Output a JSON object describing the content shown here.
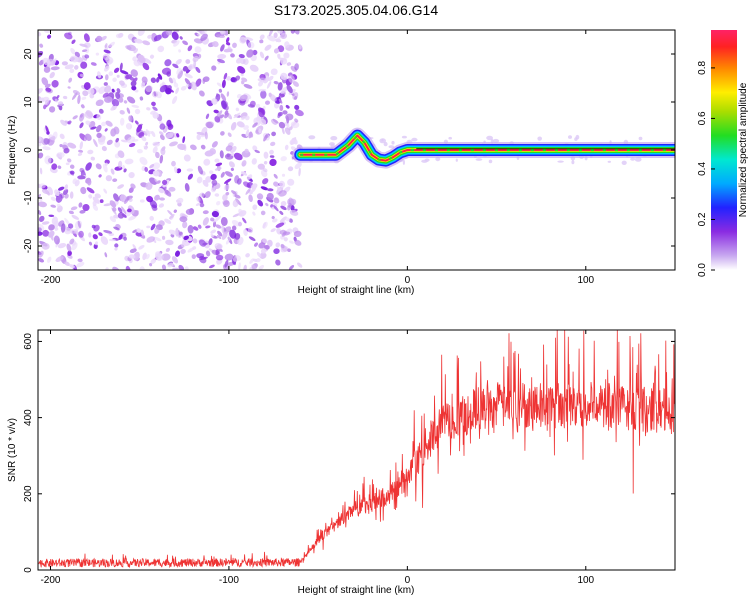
{
  "title": "S173.2025.305.04.06.G14",
  "chart_data": [
    {
      "type": "heatmap",
      "name": "spectrogram",
      "xlabel": "Height of straight line (km)",
      "ylabel": "Frequency (Hz)",
      "xlim": [
        -207,
        150
      ],
      "ylim": [
        -25,
        25
      ],
      "xticks": [
        -200,
        -100,
        0,
        100
      ],
      "yticks": [
        -20,
        -10,
        0,
        10,
        20
      ],
      "noise_region_x": [
        -207,
        -60
      ],
      "ridge_x": [
        -60,
        -50,
        -40,
        -33,
        -28,
        -24,
        -20,
        -16,
        -12,
        -8,
        -4,
        0,
        5,
        10,
        20,
        40,
        80,
        120,
        150
      ],
      "ridge_y": [
        -1,
        -1,
        -1,
        1,
        3,
        1.5,
        -1,
        -2,
        -2.2,
        -1.5,
        -0.5,
        0,
        0,
        0,
        0,
        0,
        0,
        0,
        0
      ],
      "colorbar": {
        "label": "Normalized spectral amplitude",
        "range": [
          0,
          0.95
        ],
        "ticks": [
          "0.0",
          "0.2",
          "0.4",
          "0.6",
          "0.8"
        ]
      }
    },
    {
      "type": "line",
      "name": "snr",
      "xlabel": "Height of straight line (km)",
      "ylabel": "SNR (10 * v/v)",
      "xlim": [
        -207,
        150
      ],
      "ylim": [
        0,
        630
      ],
      "xticks": [
        -200,
        -100,
        0,
        100
      ],
      "yticks": [
        0,
        200,
        400,
        600
      ],
      "series": [
        {
          "name": "SNR",
          "color": "#ee3333",
          "trend_x": [
            -207,
            -60,
            -48,
            -30,
            -10,
            0,
            10,
            20,
            40,
            60,
            80,
            100,
            130,
            150
          ],
          "trend_y": [
            18,
            20,
            90,
            160,
            200,
            240,
            330,
            390,
            430,
            440,
            440,
            440,
            430,
            420
          ]
        }
      ]
    }
  ]
}
